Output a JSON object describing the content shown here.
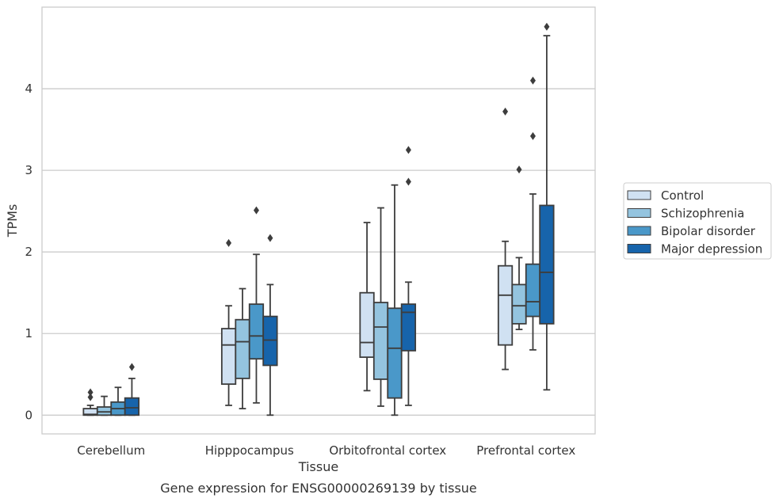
{
  "caption": "Gene expression for ENSG00000269139 by tissue",
  "chart_data": {
    "type": "box",
    "xlabel": "Tissue",
    "ylabel": "TPMs",
    "ylim": [
      -0.23,
      5.0
    ],
    "yticks": [
      0,
      1,
      2,
      3,
      4
    ],
    "grid": "horizontal",
    "legend_position": "right",
    "categories": [
      "Cerebellum",
      "Hipppocampus",
      "Orbitofrontal cortex",
      "Prefrontal cortex"
    ],
    "series": [
      {
        "name": "Control",
        "color": "#d0e1f2",
        "boxes": [
          {
            "whislo": 0.0,
            "q1": 0.0,
            "med": 0.01,
            "q3": 0.08,
            "whishi": 0.12,
            "fliers": [
              0.22,
              0.28
            ]
          },
          {
            "whislo": 0.12,
            "q1": 0.38,
            "med": 0.86,
            "q3": 1.06,
            "whishi": 1.34,
            "fliers": [
              2.11
            ]
          },
          {
            "whislo": 0.3,
            "q1": 0.71,
            "med": 0.89,
            "q3": 1.5,
            "whishi": 2.36,
            "fliers": []
          },
          {
            "whislo": 0.56,
            "q1": 0.86,
            "med": 1.47,
            "q3": 1.83,
            "whishi": 2.13,
            "fliers": [
              3.72
            ]
          }
        ]
      },
      {
        "name": "Schizophrenia",
        "color": "#94c4df",
        "boxes": [
          {
            "whislo": 0.0,
            "q1": 0.0,
            "med": 0.04,
            "q3": 0.1,
            "whishi": 0.23,
            "fliers": []
          },
          {
            "whislo": 0.08,
            "q1": 0.45,
            "med": 0.9,
            "q3": 1.17,
            "whishi": 1.55,
            "fliers": []
          },
          {
            "whislo": 0.11,
            "q1": 0.44,
            "med": 1.08,
            "q3": 1.38,
            "whishi": 2.54,
            "fliers": []
          },
          {
            "whislo": 1.05,
            "q1": 1.12,
            "med": 1.34,
            "q3": 1.6,
            "whishi": 1.93,
            "fliers": [
              3.01
            ]
          }
        ]
      },
      {
        "name": "Bipolar disorder",
        "color": "#4a98c9",
        "boxes": [
          {
            "whislo": 0.0,
            "q1": 0.0,
            "med": 0.08,
            "q3": 0.16,
            "whishi": 0.34,
            "fliers": []
          },
          {
            "whislo": 0.15,
            "q1": 0.69,
            "med": 0.97,
            "q3": 1.36,
            "whishi": 1.97,
            "fliers": [
              2.51
            ]
          },
          {
            "whislo": 0.0,
            "q1": 0.21,
            "med": 0.82,
            "q3": 1.31,
            "whishi": 2.82,
            "fliers": []
          },
          {
            "whislo": 0.8,
            "q1": 1.21,
            "med": 1.39,
            "q3": 1.85,
            "whishi": 2.71,
            "fliers": [
              3.42,
              4.1
            ]
          }
        ]
      },
      {
        "name": "Major depression",
        "color": "#1764ab",
        "boxes": [
          {
            "whislo": 0.0,
            "q1": 0.0,
            "med": 0.09,
            "q3": 0.21,
            "whishi": 0.45,
            "fliers": [
              0.59
            ]
          },
          {
            "whislo": 0.0,
            "q1": 0.61,
            "med": 0.92,
            "q3": 1.21,
            "whishi": 1.6,
            "fliers": [
              2.17
            ]
          },
          {
            "whislo": 0.12,
            "q1": 0.79,
            "med": 1.26,
            "q3": 1.36,
            "whishi": 1.63,
            "fliers": [
              2.86,
              3.25
            ]
          },
          {
            "whislo": 0.31,
            "q1": 1.12,
            "med": 1.75,
            "q3": 2.57,
            "whishi": 4.65,
            "fliers": [
              4.76
            ]
          }
        ]
      }
    ]
  }
}
